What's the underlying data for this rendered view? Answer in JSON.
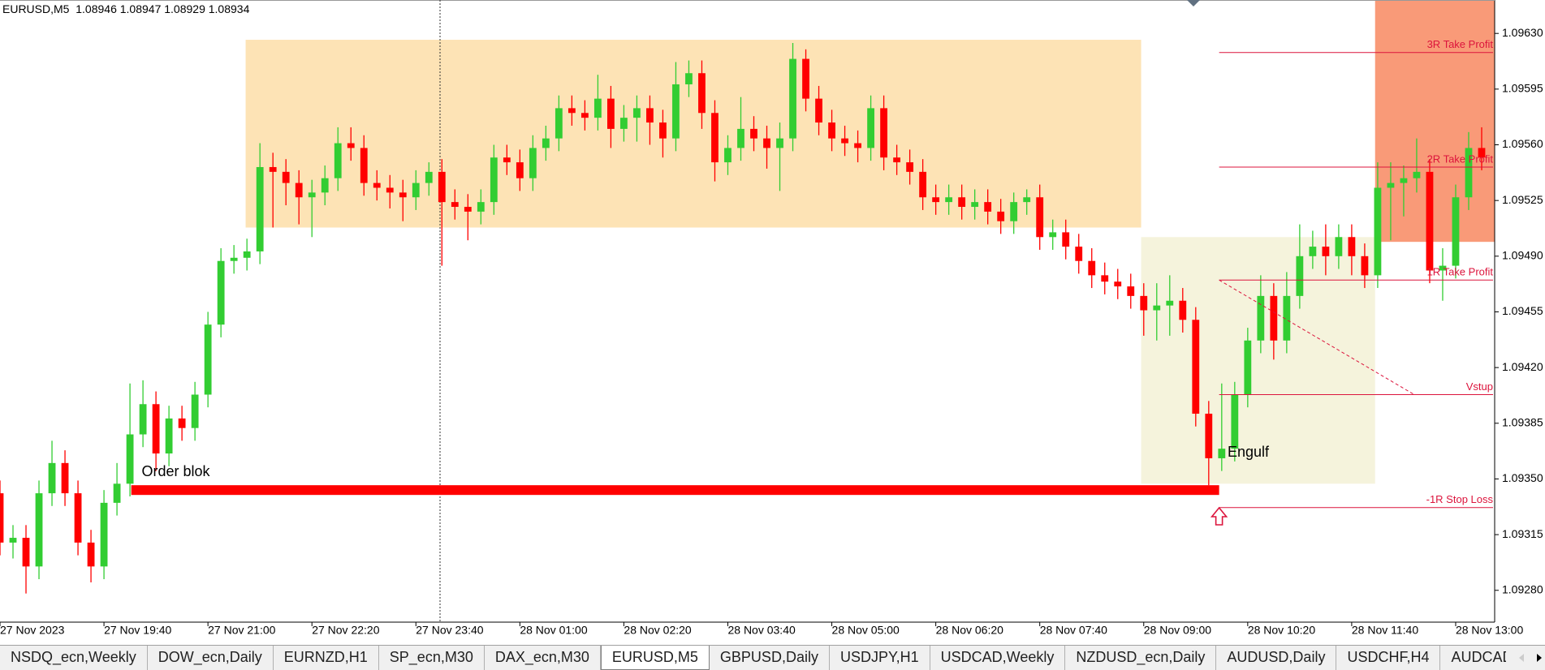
{
  "window": {
    "symbol": "EURUSD,M5",
    "quote": [
      1.08946,
      1.08947,
      1.08929,
      1.08934
    ]
  },
  "chart_data": {
    "type": "candlestick",
    "colors": {
      "up": "#32cd32",
      "down": "#ff0000"
    },
    "open": [
      1.09341,
      1.0931,
      1.09313,
      1.09295,
      1.09341,
      1.0936,
      1.09341,
      1.0931,
      1.09295,
      1.09335,
      1.09347,
      1.09378,
      1.09397,
      1.09366,
      1.09388,
      1.09382,
      1.09403,
      1.09447,
      1.09487,
      1.09489,
      1.09493,
      1.09546,
      1.09543,
      1.09536,
      1.09527,
      1.0953,
      1.09539,
      1.09561,
      1.09558,
      1.09536,
      1.09533,
      1.0953,
      1.09527,
      1.09536,
      1.09543,
      1.09524,
      1.09521,
      1.09518,
      1.09524,
      1.09552,
      1.09549,
      1.09539,
      1.09558,
      1.09564,
      1.09583,
      1.0958,
      1.09577,
      1.09589,
      1.0957,
      1.09577,
      1.09583,
      1.09574,
      1.09564,
      1.09598,
      1.09605,
      1.0958,
      1.09549,
      1.09558,
      1.0957,
      1.09564,
      1.09558,
      1.09564,
      1.09614,
      1.09589,
      1.09574,
      1.09564,
      1.09561,
      1.09558,
      1.09583,
      1.09552,
      1.09549,
      1.09543,
      1.09527,
      1.09524,
      1.09527,
      1.09521,
      1.09524,
      1.09518,
      1.09512,
      1.09524,
      1.09527,
      1.09502,
      1.09505,
      1.09496,
      1.09487,
      1.09478,
      1.09474,
      1.09471,
      1.09465,
      1.09456,
      1.09459,
      1.09462,
      1.0945,
      1.09391,
      1.09363,
      1.09369,
      1.09403,
      1.09437,
      1.09465,
      1.09437,
      1.09465,
      1.0949,
      1.09496,
      1.0949,
      1.09502,
      1.0949,
      1.09478,
      1.09533,
      1.09536,
      1.09539,
      1.09543,
      1.09481,
      1.09484,
      1.09527,
      1.09558
    ],
    "high": [
      1.09349,
      1.09321,
      1.09321,
      1.09349,
      1.09374,
      1.09368,
      1.09349,
      1.09318,
      1.09343,
      1.0936,
      1.0941,
      1.09412,
      1.09405,
      1.09396,
      1.09396,
      1.09411,
      1.09455,
      1.09495,
      1.09497,
      1.09501,
      1.09561,
      1.09555,
      1.09551,
      1.09544,
      1.09538,
      1.09547,
      1.09571,
      1.09571,
      1.09566,
      1.09544,
      1.09541,
      1.09538,
      1.09544,
      1.09549,
      1.09551,
      1.09532,
      1.09529,
      1.09532,
      1.0956,
      1.0956,
      1.09557,
      1.09566,
      1.09572,
      1.09591,
      1.09591,
      1.09588,
      1.09604,
      1.09597,
      1.09585,
      1.09591,
      1.09591,
      1.09582,
      1.09612,
      1.09613,
      1.09613,
      1.09588,
      1.09566,
      1.0959,
      1.09578,
      1.09572,
      1.09574,
      1.09624,
      1.0962,
      1.09597,
      1.09582,
      1.09572,
      1.09569,
      1.09591,
      1.09591,
      1.0956,
      1.09557,
      1.09551,
      1.09535,
      1.09535,
      1.09535,
      1.09532,
      1.09532,
      1.09526,
      1.0953,
      1.09532,
      1.09535,
      1.09513,
      1.09513,
      1.09504,
      1.09495,
      1.09486,
      1.09482,
      1.09479,
      1.09473,
      1.09473,
      1.09478,
      1.0947,
      1.09458,
      1.09399,
      1.0941,
      1.09411,
      1.09445,
      1.09478,
      1.09473,
      1.0948,
      1.0951,
      1.09506,
      1.0951,
      1.0951,
      1.0951,
      1.09498,
      1.09549,
      1.09549,
      1.09547,
      1.09564,
      1.09551,
      1.09495,
      1.09535,
      1.09568,
      1.09571
    ],
    "low": [
      1.09302,
      1.093,
      1.09278,
      1.09287,
      1.09333,
      1.09333,
      1.09302,
      1.09285,
      1.09287,
      1.09327,
      1.09339,
      1.0937,
      1.09355,
      1.09358,
      1.09374,
      1.09374,
      1.09395,
      1.09439,
      1.09479,
      1.09481,
      1.09485,
      1.09508,
      1.09522,
      1.0951,
      1.09502,
      1.09522,
      1.09531,
      1.0955,
      1.09528,
      1.09525,
      1.0952,
      1.09512,
      1.09519,
      1.09528,
      1.09484,
      1.09513,
      1.095,
      1.0951,
      1.09516,
      1.09541,
      1.09531,
      1.09531,
      1.0955,
      1.09556,
      1.09572,
      1.09569,
      1.09569,
      1.09558,
      1.09562,
      1.09562,
      1.0956,
      1.09552,
      1.09556,
      1.0959,
      1.0957,
      1.09537,
      1.09541,
      1.0955,
      1.09556,
      1.09545,
      1.09531,
      1.09556,
      1.09581,
      1.09566,
      1.09556,
      1.09553,
      1.09549,
      1.0955,
      1.09544,
      1.09541,
      1.09535,
      1.09519,
      1.09516,
      1.09516,
      1.09513,
      1.09513,
      1.0951,
      1.09504,
      1.09504,
      1.09516,
      1.09494,
      1.09494,
      1.09488,
      1.09479,
      1.0947,
      1.09466,
      1.09463,
      1.09457,
      1.0944,
      1.09437,
      1.0944,
      1.09442,
      1.09383,
      1.09346,
      1.09355,
      1.09361,
      1.09395,
      1.09429,
      1.09425,
      1.09429,
      1.09457,
      1.09482,
      1.09478,
      1.09482,
      1.09478,
      1.0947,
      1.0947,
      1.095,
      1.09515,
      1.0953,
      1.09473,
      1.09462,
      1.09476,
      1.09519,
      1.09544
    ],
    "close": [
      1.0931,
      1.09313,
      1.09295,
      1.09341,
      1.0936,
      1.09341,
      1.0931,
      1.09295,
      1.09335,
      1.09347,
      1.09378,
      1.09397,
      1.09366,
      1.09388,
      1.09382,
      1.09403,
      1.09447,
      1.09487,
      1.09489,
      1.09493,
      1.09546,
      1.09543,
      1.09536,
      1.09527,
      1.0953,
      1.09539,
      1.09561,
      1.09558,
      1.09536,
      1.09533,
      1.0953,
      1.09527,
      1.09536,
      1.09543,
      1.09524,
      1.09521,
      1.09518,
      1.09524,
      1.09552,
      1.09549,
      1.09539,
      1.09558,
      1.09564,
      1.09583,
      1.0958,
      1.09577,
      1.09589,
      1.0957,
      1.09577,
      1.09583,
      1.09574,
      1.09564,
      1.09598,
      1.09605,
      1.0958,
      1.09549,
      1.09558,
      1.0957,
      1.09564,
      1.09558,
      1.09564,
      1.09614,
      1.09589,
      1.09574,
      1.09564,
      1.09561,
      1.09558,
      1.09583,
      1.09552,
      1.09549,
      1.09543,
      1.09527,
      1.09524,
      1.09527,
      1.09521,
      1.09524,
      1.09518,
      1.09512,
      1.09524,
      1.09527,
      1.09502,
      1.09505,
      1.09496,
      1.09487,
      1.09478,
      1.09474,
      1.09471,
      1.09465,
      1.09456,
      1.09459,
      1.09462,
      1.0945,
      1.09391,
      1.09363,
      1.09369,
      1.09403,
      1.09437,
      1.09465,
      1.09437,
      1.09465,
      1.0949,
      1.09496,
      1.0949,
      1.09502,
      1.0949,
      1.09478,
      1.09533,
      1.09536,
      1.09539,
      1.09543,
      1.09481,
      1.09484,
      1.09527,
      1.09558,
      1.09552
    ],
    "xlim": [
      0,
      115
    ],
    "xticks": [
      {
        "value": 0,
        "label": "27 Nov 2023"
      },
      {
        "value": 8,
        "label": "27 Nov 19:40"
      },
      {
        "value": 16,
        "label": "27 Nov 21:00"
      },
      {
        "value": 24,
        "label": "27 Nov 22:20"
      },
      {
        "value": 32,
        "label": "27 Nov 23:40"
      },
      {
        "value": 40,
        "label": "28 Nov 01:00"
      },
      {
        "value": 48,
        "label": "28 Nov 02:20"
      },
      {
        "value": 56,
        "label": "28 Nov 03:40"
      },
      {
        "value": 64,
        "label": "28 Nov 05:00"
      },
      {
        "value": 72,
        "label": "28 Nov 06:20"
      },
      {
        "value": 80,
        "label": "28 Nov 07:40"
      },
      {
        "value": 88,
        "label": "28 Nov 09:00"
      },
      {
        "value": 96,
        "label": "28 Nov 10:20"
      },
      {
        "value": 104,
        "label": "28 Nov 11:40"
      },
      {
        "value": 112,
        "label": "28 Nov 13:00"
      }
    ],
    "ylim": [
      1.0926,
      1.09651
    ],
    "yticks": [
      {
        "value": 1.0963,
        "label": "1.09630"
      },
      1.09595,
      {
        "value": 1.0956,
        "label": "1.09560"
      },
      1.09525,
      {
        "value": 1.0949,
        "label": "1.09490"
      },
      1.09455,
      {
        "value": 1.0942,
        "label": "1.09420"
      },
      1.09385,
      {
        "value": 1.0935,
        "label": "1.09350"
      },
      1.09315,
      {
        "value": 1.0928,
        "label": "1.09280"
      }
    ],
    "zones": [
      {
        "color": "#fde3b5",
        "top": 1.09626,
        "bottom": 1.09508
      },
      {
        "color": "#f5f3dc",
        "top": 1.09502,
        "bottom": 1.09347
      },
      {
        "color": "#f99a78",
        "top": 1.09651,
        "bottom": 1.09499
      }
    ],
    "order_block": {
      "label": "Order blok",
      "value": 1.09343,
      "color": "#ff0000"
    },
    "signal": {
      "label": "Engulf"
    },
    "level_color": "#dc143c",
    "levels": [
      {
        "label": "3R Take Profit",
        "value": 1.09618
      },
      {
        "label": "2R Take Profit",
        "value": 1.09546
      },
      {
        "label": "1R Take Profit",
        "value": 1.09475
      },
      {
        "label": "Vstup",
        "value": 1.09403
      },
      {
        "label": "-1R Stop Loss",
        "value": 1.09332
      }
    ]
  },
  "tabs": {
    "active": 5,
    "items": [
      "NSDQ_ecn,Weekly",
      "DOW_ecn,Daily",
      "EURNZD,H1",
      "SP_ecn,M30",
      "DAX_ecn,M30",
      "EURUSD,M5",
      "GBPUSD,Daily",
      "USDJPY,H1",
      "USDCAD,Weekly",
      "NZDUSD_ecn,Daily",
      "AUDUSD,Daily",
      "USDCHF,H4",
      "AUDCAD,Weekly"
    ]
  }
}
